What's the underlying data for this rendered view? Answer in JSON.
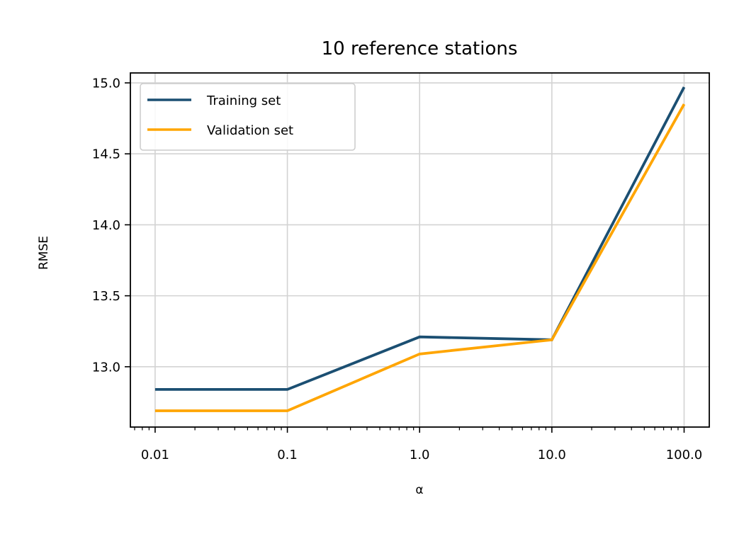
{
  "chart_data": {
    "type": "line",
    "title": "10 reference stations",
    "xlabel": "α",
    "ylabel": "RMSE",
    "xscale": "log",
    "x": [
      0.01,
      0.1,
      1.0,
      10.0,
      100.0
    ],
    "x_tick_labels": [
      "0.01",
      "0.1",
      "1.0",
      "10.0",
      "100.0"
    ],
    "y_ticks": [
      13.0,
      13.5,
      14.0,
      14.5,
      15.0
    ],
    "y_tick_labels": [
      "13.0",
      "13.5",
      "14.0",
      "14.5",
      "15.0"
    ],
    "xlim": [
      0.0065,
      155
    ],
    "ylim": [
      12.575,
      15.07
    ],
    "grid": true,
    "legend_position": "top-left",
    "series": [
      {
        "name": "Training set",
        "color": "#1b4f72",
        "values": [
          12.84,
          12.84,
          13.21,
          13.19,
          14.97
        ]
      },
      {
        "name": "Validation set",
        "color": "#ffa500",
        "values": [
          12.69,
          12.69,
          13.09,
          13.19,
          14.85
        ]
      }
    ]
  }
}
